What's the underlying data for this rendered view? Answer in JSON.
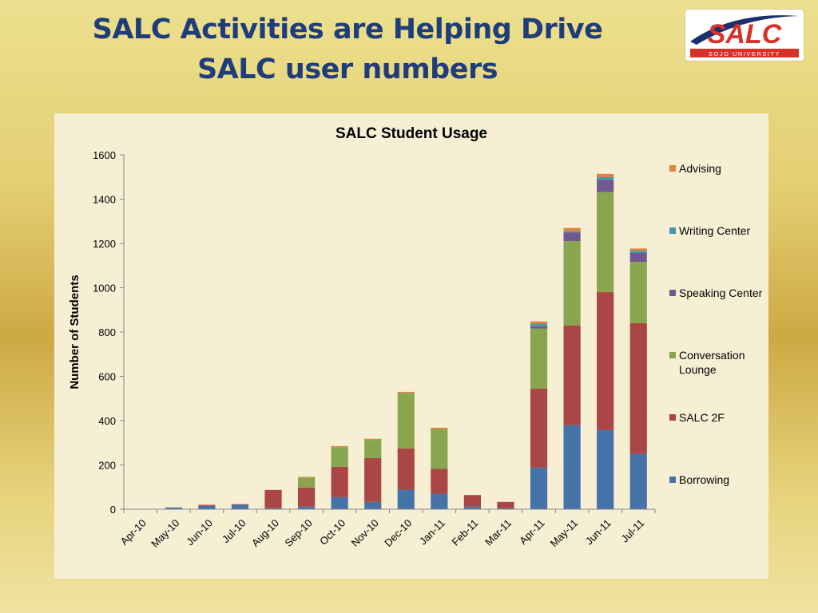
{
  "slide": {
    "title_line1": "SALC Activities are Helping Drive",
    "title_line2": "SALC user numbers"
  },
  "logo": {
    "wordmark": "SALC",
    "subtitle": "SOJO UNIVERSITY",
    "colors": {
      "red": "#d7312a",
      "navy": "#1b2f6a"
    }
  },
  "chart_data": {
    "type": "bar",
    "stacked": true,
    "title": "SALC Student Usage",
    "xlabel": "",
    "ylabel": "Number of Students",
    "ylim": [
      0,
      1600
    ],
    "yticks": [
      0,
      200,
      400,
      600,
      800,
      1000,
      1200,
      1400,
      1600
    ],
    "grid": false,
    "legend_position": "right",
    "categories": [
      "Apr-10",
      "May-10",
      "Jun-10",
      "Jul-10",
      "Aug-10",
      "Sep-10",
      "Oct-10",
      "Nov-10",
      "Dec-10",
      "Jan-11",
      "Feb-11",
      "Mar-11",
      "Apr-11",
      "May-11",
      "Jun-11",
      "Jul-11"
    ],
    "series": [
      {
        "name": "Borrowing",
        "color": "#4572a7",
        "values": [
          2,
          8,
          15,
          20,
          5,
          12,
          55,
          33,
          88,
          70,
          12,
          5,
          188,
          380,
          358,
          250
        ]
      },
      {
        "name": "SALC 2F",
        "color": "#aa4643",
        "values": [
          0,
          0,
          5,
          3,
          82,
          86,
          137,
          198,
          187,
          112,
          52,
          28,
          356,
          450,
          622,
          590
        ]
      },
      {
        "name": "Conversation Lounge",
        "color": "#89a54e",
        "values": [
          0,
          0,
          0,
          0,
          0,
          45,
          88,
          82,
          250,
          180,
          0,
          0,
          272,
          380,
          452,
          277
        ]
      },
      {
        "name": "Speaking Center",
        "color": "#71588f",
        "values": [
          0,
          0,
          0,
          0,
          0,
          0,
          0,
          0,
          0,
          0,
          0,
          0,
          10,
          40,
          55,
          40
        ]
      },
      {
        "name": "Writing Center",
        "color": "#4198af",
        "values": [
          0,
          0,
          0,
          0,
          0,
          0,
          0,
          0,
          0,
          0,
          0,
          0,
          10,
          5,
          12,
          10
        ]
      },
      {
        "name": "Advising",
        "color": "#db843d",
        "values": [
          0,
          0,
          0,
          0,
          0,
          3,
          5,
          5,
          5,
          6,
          0,
          0,
          12,
          15,
          15,
          10
        ]
      }
    ],
    "legend_order": [
      "Advising",
      "Writing Center",
      "Speaking Center",
      "Conversation Lounge",
      "SALC 2F",
      "Borrowing"
    ]
  }
}
